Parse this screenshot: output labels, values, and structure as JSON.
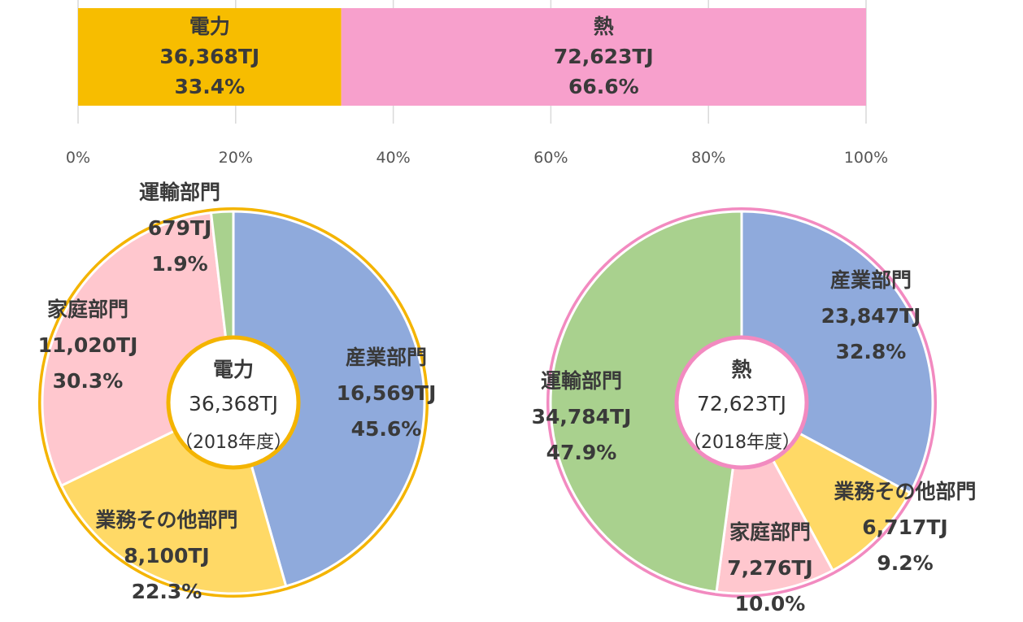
{
  "chart_data": [
    {
      "type": "bar",
      "orientation": "horizontal-stacked-100",
      "xlim": [
        0,
        100
      ],
      "ticks": [
        "0%",
        "20%",
        "40%",
        "60%",
        "80%",
        "100%"
      ],
      "grid": true,
      "segments": [
        {
          "name": "電力",
          "value_label": "36,368TJ",
          "pct_label": "33.4%",
          "value": 36368,
          "pct": 33.4,
          "color": "#f7bd00"
        },
        {
          "name": "熱",
          "value_label": "72,623TJ",
          "pct_label": "66.6%",
          "value": 72623,
          "pct": 66.6,
          "color": "#f7a0cc"
        }
      ]
    },
    {
      "type": "pie",
      "donut": true,
      "center": {
        "title": "電力",
        "value": "36,368TJ",
        "year": "（2018年度）"
      },
      "ring_color": "#f4b400",
      "slices": [
        {
          "name": "産業部門",
          "value_label": "16,569TJ",
          "pct_label": "45.6%",
          "value": 16569,
          "pct": 45.6,
          "color": "#8faadc"
        },
        {
          "name": "業務その他部門",
          "value_label": "8,100TJ",
          "pct_label": "22.3%",
          "value": 8100,
          "pct": 22.3,
          "color": "#ffd966"
        },
        {
          "name": "家庭部門",
          "value_label": "11,020TJ",
          "pct_label": "30.3%",
          "value": 11020,
          "pct": 30.3,
          "color": "#ffc7ce"
        },
        {
          "name": "運輸部門",
          "value_label": "679TJ",
          "pct_label": "1.9%",
          "value": 679,
          "pct": 1.9,
          "color": "#a9d18e"
        }
      ]
    },
    {
      "type": "pie",
      "donut": true,
      "center": {
        "title": "熱",
        "value": "72,623TJ",
        "year": "（2018年度）"
      },
      "ring_color": "#f28ac0",
      "slices": [
        {
          "name": "産業部門",
          "value_label": "23,847TJ",
          "pct_label": "32.8%",
          "value": 23847,
          "pct": 32.8,
          "color": "#8faadc"
        },
        {
          "name": "業務その他部門",
          "value_label": "6,717TJ",
          "pct_label": "9.2%",
          "value": 6717,
          "pct": 9.2,
          "color": "#ffd966"
        },
        {
          "name": "家庭部門",
          "value_label": "7,276TJ",
          "pct_label": "10.0%",
          "value": 7276,
          "pct": 10.0,
          "color": "#ffc7ce"
        },
        {
          "name": "運輸部門",
          "value_label": "34,784TJ",
          "pct_label": "47.9%",
          "value": 34784,
          "pct": 47.9,
          "color": "#a9d18e"
        }
      ]
    }
  ]
}
